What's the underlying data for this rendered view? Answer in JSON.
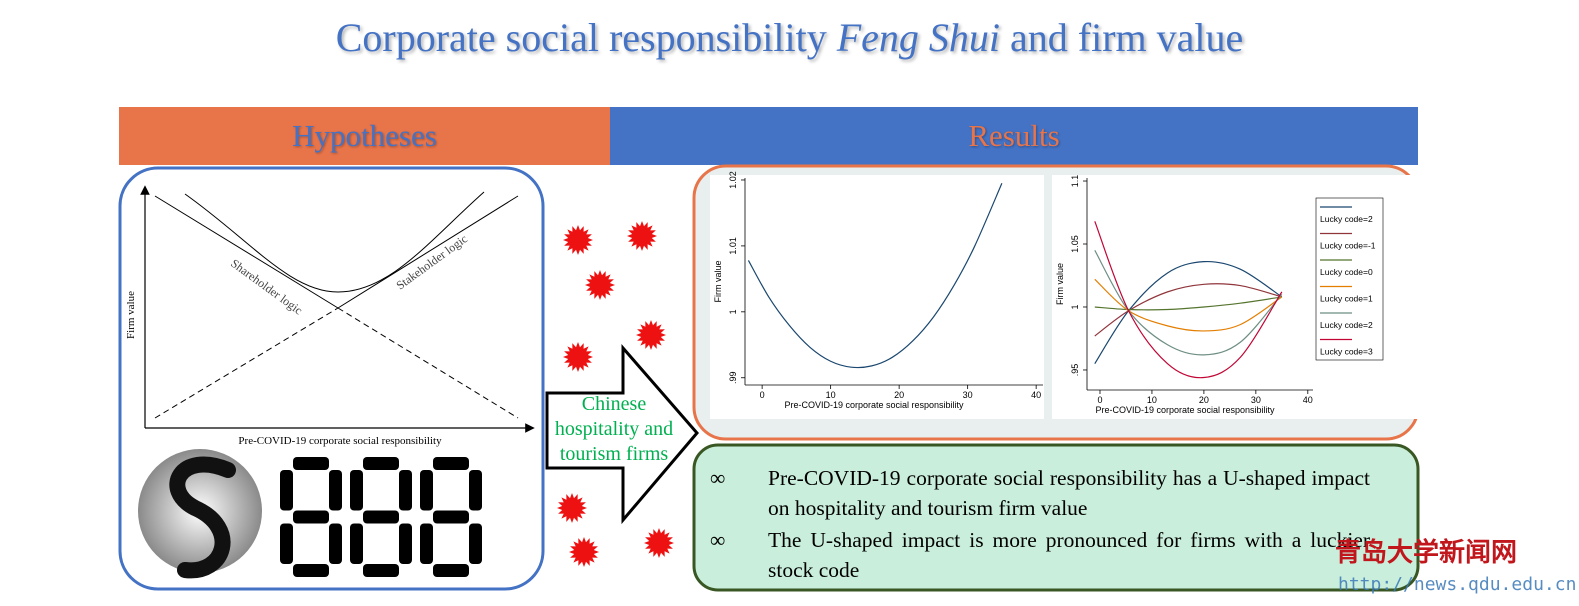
{
  "title": {
    "part1": "Corporate social responsibility ",
    "emphasis": "Feng Shui",
    "part2": " and firm value"
  },
  "headers": {
    "left": "Hypotheses",
    "right": "Results"
  },
  "hypothesis_chart": {
    "y_label": "Firm value",
    "x_label": "Pre-COVID-19 corporate social responsibility",
    "curve1": "Shareholder logic",
    "curve2": "Stakeholder logic"
  },
  "arrow_text": "Chinese hospitality and tourism firms",
  "chart_data": [
    {
      "type": "line",
      "x_label": "Pre-COVID-19 corporate social responsibility",
      "y_label": "Firm value",
      "x": [
        -2,
        1,
        4,
        7,
        10,
        13,
        16,
        19,
        22,
        25,
        28,
        31,
        35
      ],
      "values": [
        1.0078,
        1.0022,
        0.9979,
        0.9946,
        0.9925,
        0.9916,
        0.9918,
        0.9931,
        0.9956,
        0.9992,
        1.004,
        1.0099,
        1.0195
      ],
      "color": "#1a476f",
      "xlim": [
        -2.5,
        41
      ],
      "ylim": [
        0.9889,
        1.0203
      ],
      "xticks": [
        0,
        10,
        20,
        30,
        40
      ],
      "yticks": [
        {
          "value": 0.99,
          "label": ".99"
        },
        1,
        1.01,
        1.02
      ]
    },
    {
      "type": "line",
      "x_label": "Pre-COVID-19 corporate social responsibility",
      "y_label": "Firm value",
      "x": [
        -1,
        5.5,
        13,
        20,
        27,
        35
      ],
      "series": [
        {
          "name": "Lucky code=2",
          "color": "#1a476f",
          "values": [
            0.955,
            0.997,
            1.027,
            1.036,
            1.03,
            1.008
          ]
        },
        {
          "name": "Lucky code=-1",
          "color": "#90353b",
          "values": [
            0.977,
            0.997,
            1.012,
            1.018,
            1.017,
            1.008
          ]
        },
        {
          "name": "Lucky code=0",
          "color": "#55752f",
          "values": [
            1.0,
            0.998,
            0.998,
            1.0,
            1.003,
            1.008
          ]
        },
        {
          "name": "Lucky code=1",
          "color": "#e37e00",
          "values": [
            1.022,
            0.997,
            0.985,
            0.981,
            0.986,
            1.008
          ]
        },
        {
          "name": "Lucky code=2",
          "color": "#6e8e84",
          "values": [
            1.045,
            0.997,
            0.97,
            0.962,
            0.972,
            1.01
          ]
        },
        {
          "name": "Lucky code=3",
          "color": "#c10534",
          "values": [
            1.068,
            0.997,
            0.955,
            0.944,
            0.96,
            1.012
          ]
        }
      ],
      "xlim": [
        -2.5,
        41
      ],
      "ylim": [
        0.9341,
        1.1024
      ],
      "xticks": [
        0,
        10,
        20,
        30,
        40
      ],
      "yticks": [
        {
          "value": 0.95,
          "label": ".95"
        },
        1,
        1.05,
        1.1
      ],
      "legend": "right"
    }
  ],
  "findings": [
    "Pre-COVID-19 corporate social responsibility has a U-shaped impact on hospitality and tourism firm value",
    "The U-shaped impact is more pronounced for firms with a luckier stock code"
  ],
  "bullet": "∞",
  "watermark": {
    "name": "青岛大学新闻网",
    "url": "http://news.qdu.edu.cn"
  }
}
